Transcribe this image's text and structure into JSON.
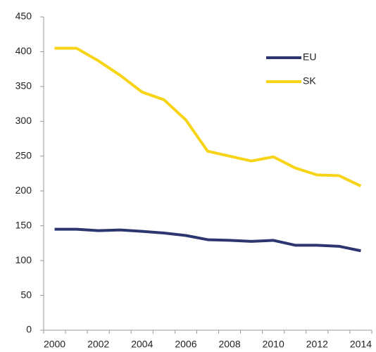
{
  "chart_data": {
    "type": "line",
    "categories": [
      "2000",
      null,
      "2002",
      null,
      "2004",
      null,
      "2006",
      null,
      "2008",
      null,
      "2010",
      null,
      "2012",
      null,
      "2014"
    ],
    "series": [
      {
        "name": "EU",
        "color": "#2e3670",
        "values": [
          145,
          145,
          143,
          144,
          142,
          139.5,
          136,
          130,
          129,
          127.5,
          129,
          122,
          122,
          120.5,
          114
        ]
      },
      {
        "name": "SK",
        "color": "#f7d417",
        "values": [
          405,
          405,
          387,
          366,
          342,
          331,
          302,
          257,
          250,
          243,
          249,
          233,
          223,
          222,
          207
        ]
      }
    ],
    "ylim": [
      0,
      450
    ],
    "yticks": [
      0,
      50,
      100,
      150,
      200,
      250,
      300,
      350,
      400,
      450
    ],
    "grid": false,
    "legend": "top-right"
  }
}
